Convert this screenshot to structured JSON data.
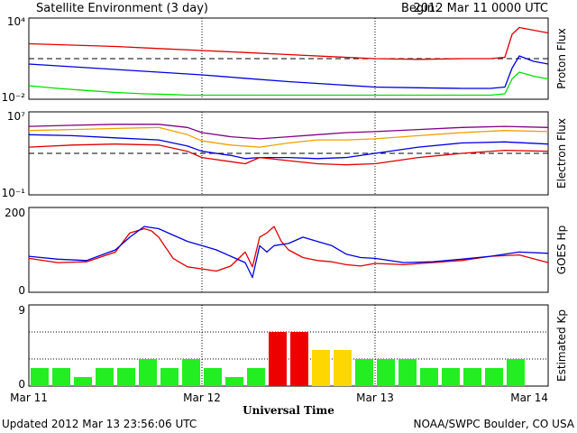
{
  "header": {
    "title": "Satellite Environment (3 day)",
    "begin_label": "Begin:",
    "begin_value": "2012 Mar 11 0000 UTC"
  },
  "footer": {
    "updated": "Updated 2012 Mar 13 23:56:06 UTC",
    "credit": "NOAA/SWPC Boulder, CO USA"
  },
  "x_axis": {
    "label": "Universal Time",
    "ticks": [
      "Mar 11",
      "Mar 12",
      "Mar 13",
      "Mar 14"
    ]
  },
  "colors": {
    "red": "#e00000",
    "blue": "#0000e0",
    "green": "#00e000",
    "purple": "#800080",
    "orange": "#f0a000",
    "kp_green": "#22ee22",
    "kp_yellow": "#ffd700",
    "kp_red": "#ee0000"
  },
  "chart_data": [
    {
      "type": "line",
      "panel": "proton",
      "ylabel": "Proton Flux",
      "yscale": "log",
      "ylim_exp": [
        -2,
        4
      ],
      "y_tick_labels": [
        "10⁴",
        "10⁻²"
      ],
      "threshold_exp": 1,
      "x_unit": "hours since begin",
      "series": [
        {
          "color": "red",
          "x": [
            0,
            6,
            12,
            18,
            24,
            30,
            36,
            42,
            48,
            54,
            60,
            64,
            66,
            67,
            68,
            70,
            72
          ],
          "y_exp": [
            2.1,
            2.0,
            1.9,
            1.75,
            1.6,
            1.45,
            1.3,
            1.15,
            1.0,
            0.95,
            1.0,
            1.0,
            1.1,
            2.8,
            3.3,
            3.1,
            2.9
          ]
        },
        {
          "color": "blue",
          "x": [
            0,
            6,
            12,
            18,
            24,
            30,
            36,
            42,
            48,
            54,
            60,
            64,
            66,
            67,
            68,
            70,
            72
          ],
          "y_exp": [
            0.6,
            0.4,
            0.2,
            0.0,
            -0.2,
            -0.45,
            -0.7,
            -0.9,
            -1.1,
            -1.15,
            -1.2,
            -1.2,
            -1.1,
            0.3,
            1.2,
            0.8,
            0.6
          ]
        },
        {
          "color": "green",
          "x": [
            0,
            4,
            8,
            12,
            16,
            20,
            22,
            30,
            40,
            50,
            60,
            64,
            66,
            67,
            68,
            70,
            72
          ],
          "y_exp": [
            -1.0,
            -1.2,
            -1.35,
            -1.5,
            -1.6,
            -1.65,
            -1.7,
            -1.7,
            -1.7,
            -1.7,
            -1.7,
            -1.7,
            -1.6,
            -0.5,
            0.0,
            -0.3,
            -0.5
          ]
        }
      ]
    },
    {
      "type": "line",
      "panel": "electron",
      "ylabel": "Electron Flux",
      "yscale": "log",
      "ylim_exp": [
        -1,
        7
      ],
      "y_tick_labels": [
        "10⁷",
        "10⁻¹"
      ],
      "threshold_exp": 3,
      "x_unit": "hours since begin",
      "series": [
        {
          "color": "purple",
          "x": [
            0,
            6,
            12,
            18,
            22,
            24,
            28,
            32,
            36,
            40,
            44,
            48,
            54,
            60,
            66,
            72
          ],
          "y_exp": [
            5.6,
            5.7,
            5.8,
            5.8,
            5.5,
            5.0,
            4.6,
            4.4,
            4.6,
            4.8,
            5.0,
            5.1,
            5.3,
            5.5,
            5.6,
            5.5
          ]
        },
        {
          "color": "orange",
          "x": [
            0,
            6,
            12,
            18,
            22,
            24,
            28,
            32,
            36,
            40,
            44,
            48,
            54,
            60,
            66,
            72
          ],
          "y_exp": [
            5.2,
            5.3,
            5.4,
            5.5,
            4.8,
            4.2,
            3.8,
            3.6,
            4.0,
            4.3,
            4.3,
            4.4,
            4.7,
            5.0,
            5.2,
            5.1
          ]
        },
        {
          "color": "blue",
          "x": [
            0,
            6,
            12,
            18,
            22,
            24,
            28,
            30,
            32,
            36,
            40,
            44,
            48,
            54,
            60,
            66,
            72
          ],
          "y_exp": [
            4.8,
            4.7,
            4.5,
            4.3,
            3.7,
            3.2,
            2.8,
            2.5,
            2.6,
            2.6,
            2.5,
            2.6,
            3.0,
            3.6,
            4.0,
            4.1,
            3.9
          ]
        },
        {
          "color": "red",
          "x": [
            0,
            6,
            12,
            18,
            22,
            24,
            28,
            30,
            32,
            36,
            40,
            44,
            48,
            54,
            60,
            66,
            72
          ],
          "y_exp": [
            3.6,
            3.8,
            3.9,
            3.8,
            3.2,
            2.6,
            2.2,
            2.0,
            2.6,
            2.3,
            2.0,
            1.9,
            2.0,
            2.6,
            3.0,
            3.3,
            3.2
          ]
        }
      ]
    },
    {
      "type": "line",
      "panel": "goes_hp",
      "ylabel": "GOES Hp",
      "ylim": [
        0,
        200
      ],
      "y_tick_labels": [
        "200",
        "0"
      ],
      "x_unit": "hours since begin",
      "series": [
        {
          "color": "red",
          "x": [
            0,
            4,
            8,
            12,
            14,
            16,
            17,
            18,
            20,
            22,
            24,
            26,
            28,
            30,
            31,
            32,
            33,
            34,
            35,
            36,
            38,
            40,
            42,
            44,
            46,
            48,
            52,
            56,
            60,
            64,
            68,
            72
          ],
          "y_exp": [
            80,
            70,
            72,
            95,
            140,
            150,
            145,
            130,
            80,
            60,
            55,
            50,
            62,
            95,
            60,
            130,
            140,
            155,
            120,
            100,
            82,
            75,
            72,
            65,
            62,
            68,
            65,
            70,
            75,
            85,
            88,
            70
          ]
        },
        {
          "color": "blue",
          "x": [
            0,
            4,
            8,
            12,
            14,
            16,
            18,
            20,
            22,
            24,
            26,
            28,
            30,
            31,
            32,
            33,
            34,
            36,
            38,
            40,
            42,
            44,
            46,
            48,
            52,
            56,
            60,
            64,
            68,
            72
          ],
          "y_exp": [
            85,
            78,
            75,
            100,
            130,
            155,
            150,
            135,
            120,
            110,
            100,
            85,
            70,
            35,
            110,
            95,
            110,
            115,
            130,
            120,
            110,
            90,
            82,
            80,
            70,
            72,
            78,
            85,
            95,
            92
          ]
        }
      ]
    },
    {
      "type": "bar",
      "panel": "kp",
      "ylabel": "Estimated Kp",
      "ylim": [
        0,
        9
      ],
      "y_tick_labels": [
        "9",
        "0"
      ],
      "bar_hours": 3,
      "values": [
        2,
        2,
        1,
        2,
        2,
        3,
        2,
        3,
        2,
        1,
        2,
        6,
        6,
        4,
        4,
        3,
        3,
        3,
        2,
        2,
        2,
        2,
        3,
        0
      ]
    }
  ]
}
